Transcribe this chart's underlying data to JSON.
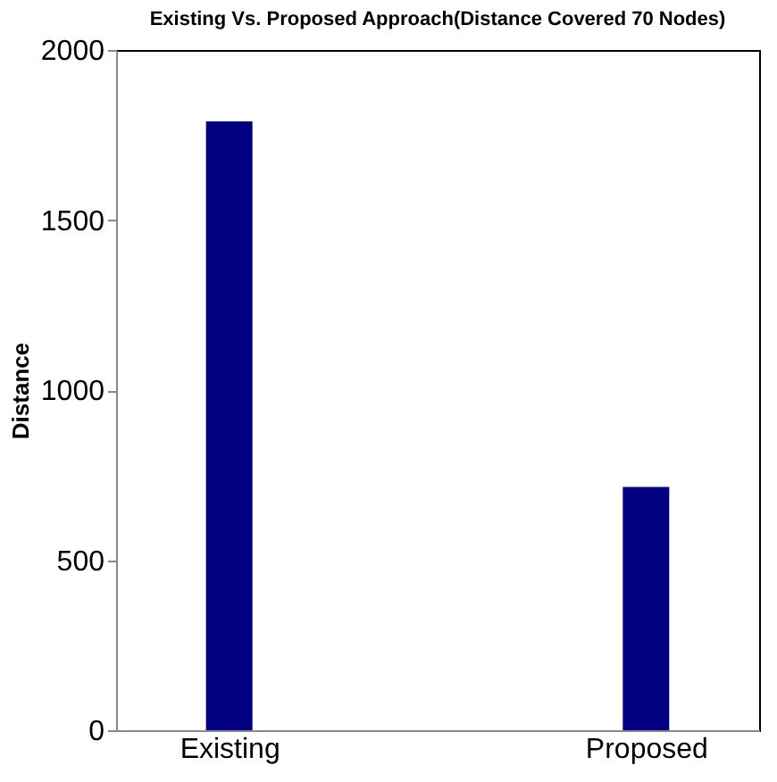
{
  "chart_data": {
    "type": "bar",
    "title": "Existing Vs. Proposed Approach(Distance Covered 70 Nodes)",
    "ylabel": "Distance",
    "categories": [
      "Existing",
      "Proposed"
    ],
    "series": [
      {
        "color": "#000080",
        "values": [
          1790,
          715
        ]
      }
    ],
    "ylim": [
      0,
      2000
    ],
    "yticks": [
      0,
      500,
      1000,
      1500,
      2000
    ],
    "grid": false
  }
}
